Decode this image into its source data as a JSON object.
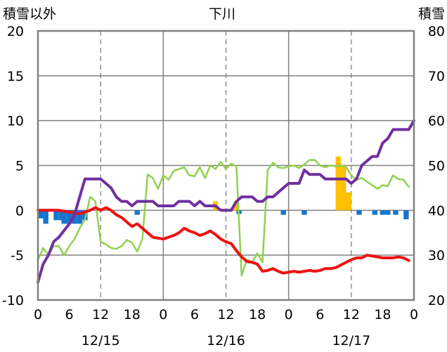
{
  "chart_data": {
    "type": "line",
    "title": "下川",
    "left_axis": {
      "title": "積雪以外",
      "ticks": [
        "20",
        "15",
        "10",
        "5",
        "0",
        "-5",
        "-10"
      ],
      "ylim": [
        -10,
        20
      ]
    },
    "right_axis": {
      "title": "積雪",
      "ticks": [
        "80",
        "70",
        "60",
        "50",
        "40",
        "30",
        "20"
      ],
      "ylim": [
        20,
        80
      ]
    },
    "x_hour_labels": [
      "0",
      "6",
      "12",
      "18",
      "0",
      "6",
      "12",
      "18",
      "0",
      "6",
      "12",
      "18",
      "0"
    ],
    "x_date_labels": [
      "12/15",
      "12/16",
      "12/17"
    ],
    "x_range_hours": [
      0,
      72
    ],
    "grid": true,
    "series": [
      {
        "key": "precipitation",
        "color": "#FFC000",
        "type": "bar",
        "axis": "left",
        "points": [
          [
            34,
            1
          ],
          [
            38,
            1
          ],
          [
            57.5,
            6
          ],
          [
            58.5,
            5
          ],
          [
            59.5,
            2
          ]
        ]
      },
      {
        "key": "sunshine",
        "color": "#1874CD",
        "type": "bar-down",
        "axis": "left",
        "points": [
          [
            0.5,
            -0.9
          ],
          [
            1.5,
            -1.5
          ],
          [
            3.5,
            -1.1
          ],
          [
            4.5,
            -1.1
          ],
          [
            5,
            -1.5
          ],
          [
            6,
            -1.5
          ],
          [
            7,
            -1.5
          ],
          [
            8,
            -1.5
          ],
          [
            9,
            -1.1
          ],
          [
            19,
            -0.5
          ],
          [
            38.5,
            -0.4
          ],
          [
            47,
            -0.5
          ],
          [
            51,
            -0.5
          ],
          [
            61.5,
            -0.5
          ],
          [
            64.5,
            -0.5
          ],
          [
            66,
            -0.5
          ],
          [
            67,
            -0.5
          ],
          [
            68.5,
            -0.5
          ],
          [
            70.5,
            -1
          ]
        ]
      },
      {
        "key": "wind",
        "color": "#92D050",
        "type": "line",
        "axis": "left",
        "points": [
          [
            0,
            -5.5
          ],
          [
            1,
            -4.2
          ],
          [
            2,
            -5
          ],
          [
            3,
            -4
          ],
          [
            4,
            -4
          ],
          [
            5,
            -5
          ],
          [
            6,
            -4
          ],
          [
            7,
            -3.2
          ],
          [
            8,
            -2
          ],
          [
            9,
            -1
          ],
          [
            10,
            1.5
          ],
          [
            11,
            1
          ],
          [
            12,
            -3.5
          ],
          [
            13,
            -3.8
          ],
          [
            14,
            -4.2
          ],
          [
            15,
            -4.3
          ],
          [
            16,
            -4
          ],
          [
            17,
            -3.3
          ],
          [
            18,
            -3.6
          ],
          [
            19,
            -4.6
          ],
          [
            20,
            -3.2
          ],
          [
            21,
            4
          ],
          [
            22,
            3.6
          ],
          [
            23,
            2.4
          ],
          [
            24,
            3.9
          ],
          [
            25,
            3.4
          ],
          [
            26,
            4.4
          ],
          [
            27,
            4.6
          ],
          [
            28,
            4.8
          ],
          [
            29,
            3.9
          ],
          [
            30,
            3.8
          ],
          [
            31,
            4.8
          ],
          [
            32,
            3.6
          ],
          [
            33,
            5
          ],
          [
            34,
            4.6
          ],
          [
            35,
            5.4
          ],
          [
            36,
            4.6
          ],
          [
            37,
            5.2
          ],
          [
            38,
            4.9
          ],
          [
            39,
            -7.3
          ],
          [
            40,
            -5.5
          ],
          [
            41,
            -5.8
          ],
          [
            42,
            -4.8
          ],
          [
            43,
            -5.8
          ],
          [
            44,
            4.5
          ],
          [
            45,
            5.3
          ],
          [
            46,
            4.8
          ],
          [
            47,
            4.7
          ],
          [
            48,
            4.9
          ],
          [
            49,
            5
          ],
          [
            50,
            4.7
          ],
          [
            51,
            5.1
          ],
          [
            52,
            5.6
          ],
          [
            53,
            5.6
          ],
          [
            54,
            5
          ],
          [
            55,
            4.8
          ],
          [
            56,
            5
          ],
          [
            57,
            4.9
          ],
          [
            58,
            5
          ],
          [
            59,
            4.8
          ],
          [
            60,
            3.9
          ],
          [
            61,
            3.4
          ],
          [
            62,
            3.6
          ],
          [
            63,
            3.2
          ],
          [
            64,
            2.8
          ],
          [
            65,
            2.4
          ],
          [
            66,
            2.8
          ],
          [
            67,
            2.7
          ],
          [
            68,
            3.9
          ],
          [
            69,
            3.5
          ],
          [
            70,
            3.4
          ],
          [
            71,
            2.6
          ]
        ]
      },
      {
        "key": "temperature",
        "color": "#EE1111",
        "type": "line",
        "axis": "left",
        "points": [
          [
            0,
            0
          ],
          [
            2,
            0
          ],
          [
            4,
            0
          ],
          [
            6,
            -0.2
          ],
          [
            8,
            -0.4
          ],
          [
            10,
            0
          ],
          [
            11,
            0.3
          ],
          [
            12,
            0
          ],
          [
            13,
            0.3
          ],
          [
            14,
            0
          ],
          [
            15,
            -0.5
          ],
          [
            16,
            -0.8
          ],
          [
            17,
            -1.3
          ],
          [
            18,
            -1.8
          ],
          [
            19,
            -1.5
          ],
          [
            20,
            -2
          ],
          [
            21,
            -2.5
          ],
          [
            22,
            -3
          ],
          [
            23,
            -3.1
          ],
          [
            24,
            -3.2
          ],
          [
            25,
            -3
          ],
          [
            26,
            -2.8
          ],
          [
            27,
            -2.5
          ],
          [
            28,
            -2
          ],
          [
            29,
            -2.3
          ],
          [
            30,
            -2.5
          ],
          [
            31,
            -2.8
          ],
          [
            32,
            -2.6
          ],
          [
            33,
            -2.3
          ],
          [
            34,
            -2.7
          ],
          [
            35,
            -3.2
          ],
          [
            36,
            -3.5
          ],
          [
            37,
            -3.7
          ],
          [
            38,
            -4.5
          ],
          [
            39,
            -5.2
          ],
          [
            40,
            -5.7
          ],
          [
            41,
            -5.8
          ],
          [
            42,
            -6
          ],
          [
            43,
            -6.8
          ],
          [
            44,
            -6.7
          ],
          [
            45,
            -6.5
          ],
          [
            46,
            -6.8
          ],
          [
            47,
            -7
          ],
          [
            48,
            -6.9
          ],
          [
            49,
            -6.8
          ],
          [
            50,
            -6.9
          ],
          [
            51,
            -6.8
          ],
          [
            52,
            -6.7
          ],
          [
            53,
            -6.8
          ],
          [
            54,
            -6.7
          ],
          [
            55,
            -6.5
          ],
          [
            56,
            -6.5
          ],
          [
            57,
            -6.4
          ],
          [
            58,
            -6.1
          ],
          [
            59,
            -5.8
          ],
          [
            60,
            -5.5
          ],
          [
            61,
            -5.3
          ],
          [
            62,
            -5.3
          ],
          [
            63,
            -5
          ],
          [
            64,
            -5.1
          ],
          [
            65,
            -5.2
          ],
          [
            66,
            -5.3
          ],
          [
            67,
            -5.3
          ],
          [
            68,
            -5.3
          ],
          [
            69,
            -5.2
          ],
          [
            70,
            -5.3
          ],
          [
            71,
            -5.6
          ]
        ]
      },
      {
        "key": "snow_depth",
        "color": "#7030A0",
        "type": "line",
        "axis": "right",
        "points": [
          [
            0,
            24
          ],
          [
            1,
            28
          ],
          [
            2,
            30
          ],
          [
            3,
            33
          ],
          [
            4,
            34
          ],
          [
            5,
            35.5
          ],
          [
            6,
            37
          ],
          [
            7,
            39
          ],
          [
            8,
            43
          ],
          [
            9,
            47
          ],
          [
            10,
            47
          ],
          [
            11,
            47
          ],
          [
            12,
            47
          ],
          [
            13,
            46
          ],
          [
            14,
            45
          ],
          [
            15,
            43
          ],
          [
            16,
            42
          ],
          [
            17,
            42
          ],
          [
            18,
            41
          ],
          [
            19,
            42
          ],
          [
            20,
            42
          ],
          [
            21,
            42
          ],
          [
            22,
            42
          ],
          [
            23,
            41
          ],
          [
            24,
            41
          ],
          [
            25,
            41
          ],
          [
            26,
            41
          ],
          [
            27,
            42
          ],
          [
            28,
            42
          ],
          [
            29,
            42
          ],
          [
            30,
            41
          ],
          [
            31,
            42
          ],
          [
            32,
            41
          ],
          [
            33,
            41
          ],
          [
            34,
            41
          ],
          [
            35,
            40
          ],
          [
            36,
            40
          ],
          [
            37,
            40
          ],
          [
            38,
            42
          ],
          [
            39,
            43
          ],
          [
            40,
            43
          ],
          [
            41,
            43
          ],
          [
            42,
            42
          ],
          [
            43,
            42
          ],
          [
            44,
            43
          ],
          [
            45,
            43
          ],
          [
            46,
            44
          ],
          [
            47,
            45
          ],
          [
            48,
            46
          ],
          [
            49,
            46
          ],
          [
            50,
            46
          ],
          [
            51,
            49
          ],
          [
            52,
            48
          ],
          [
            53,
            48
          ],
          [
            54,
            48
          ],
          [
            55,
            47
          ],
          [
            56,
            47
          ],
          [
            57,
            47
          ],
          [
            58,
            47
          ],
          [
            59,
            47
          ],
          [
            60,
            46
          ],
          [
            61,
            47
          ],
          [
            62,
            50
          ],
          [
            63,
            51
          ],
          [
            64,
            52
          ],
          [
            65,
            52
          ],
          [
            66,
            55
          ],
          [
            67,
            56
          ],
          [
            68,
            58
          ],
          [
            69,
            58
          ],
          [
            70,
            58
          ],
          [
            71,
            58
          ],
          [
            72,
            60
          ]
        ]
      }
    ]
  }
}
